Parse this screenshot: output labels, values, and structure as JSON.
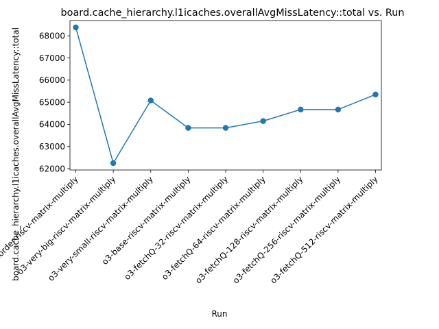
{
  "chart_data": {
    "type": "line",
    "title": "board.cache_hierarchy.l1icaches.overallAvgMissLatency::total vs. Run",
    "xlabel": "Run",
    "ylabel": "board.cache_hierarchy.l1icaches.overallAvgMissLatency::total",
    "categories": [
      "inorder-riscv-matrix-multiply",
      "o3-very-big-riscv-matrix-multiply",
      "o3-very-small-riscv-matrix-multiply",
      "o3-base-riscv-matrix-multiply",
      "o3-fetchQ-32-riscv-matrix-multiply",
      "o3-fetchQ-64-riscv-matrix-multiply",
      "o3-fetchQ-128-riscv-matrix-multiply",
      "o3-fetchQ-256-riscv-matrix-multiply",
      "o3-fetchQ-512-riscv-matrix-multiply"
    ],
    "values": [
      68380,
      62250,
      65080,
      63840,
      63840,
      64150,
      64670,
      64670,
      65350
    ],
    "ylim": [
      61940,
      68690
    ],
    "yticks": [
      62000,
      63000,
      64000,
      65000,
      66000,
      67000,
      68000
    ],
    "color": "#1f77b4",
    "marker": "circle",
    "grid": false,
    "legend": false
  }
}
